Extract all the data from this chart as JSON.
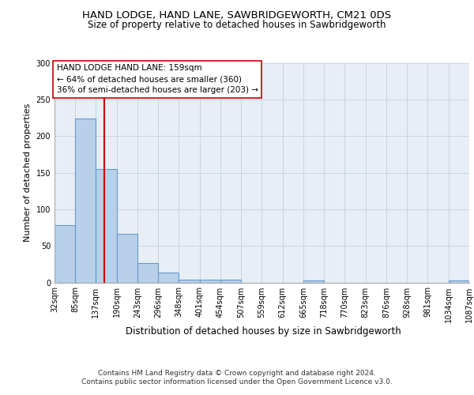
{
  "title1": "HAND LODGE, HAND LANE, SAWBRIDGEWORTH, CM21 0DS",
  "title2": "Size of property relative to detached houses in Sawbridgeworth",
  "xlabel": "Distribution of detached houses by size in Sawbridgeworth",
  "ylabel": "Number of detached properties",
  "bin_edges": [
    32,
    85,
    137,
    190,
    243,
    296,
    348,
    401,
    454,
    507,
    559,
    612,
    665,
    718,
    770,
    823,
    876,
    928,
    981,
    1034,
    1087
  ],
  "bar_heights": [
    78,
    224,
    155,
    67,
    27,
    13,
    4,
    4,
    4,
    0,
    0,
    0,
    3,
    0,
    0,
    0,
    0,
    0,
    0,
    3
  ],
  "bar_color": "#b8d0e8",
  "bar_edgecolor": "#6699cc",
  "bar_linewidth": 0.8,
  "grid_color": "#c8d4e4",
  "background_color": "#e8eef6",
  "vline_x": 159,
  "vline_color": "#cc0000",
  "vline_linewidth": 1.5,
  "annotation_text": "HAND LODGE HAND LANE: 159sqm\n← 64% of detached houses are smaller (360)\n36% of semi-detached houses are larger (203) →",
  "annotation_box_edgecolor": "#cc0000",
  "annotation_box_facecolor": "#ffffff",
  "ylim": [
    0,
    300
  ],
  "yticks": [
    0,
    50,
    100,
    150,
    200,
    250,
    300
  ],
  "footnote": "Contains HM Land Registry data © Crown copyright and database right 2024.\nContains public sector information licensed under the Open Government Licence v3.0.",
  "title1_fontsize": 9.5,
  "title2_fontsize": 8.5,
  "xlabel_fontsize": 8.5,
  "ylabel_fontsize": 8,
  "tick_fontsize": 7,
  "annotation_fontsize": 7.5,
  "footnote_fontsize": 6.5
}
